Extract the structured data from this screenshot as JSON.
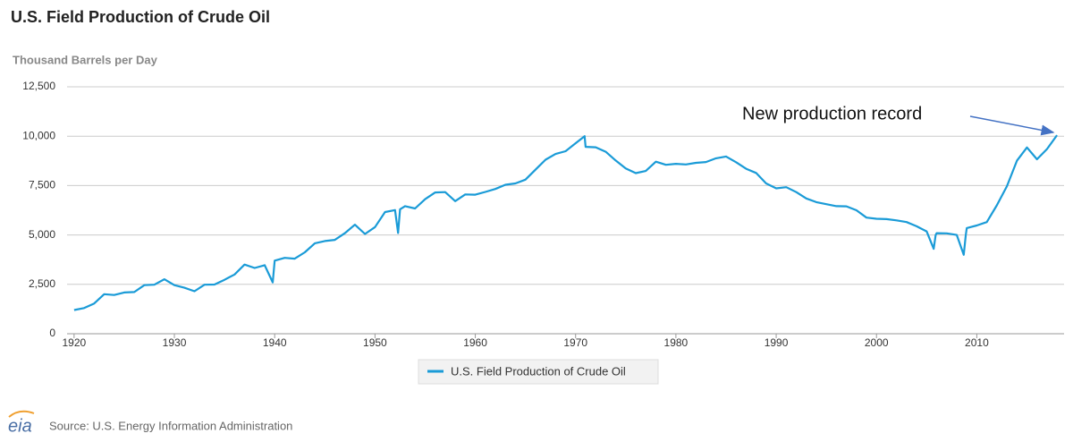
{
  "chart_data": {
    "type": "line",
    "title": "U.S. Field Production of Crude Oil",
    "y_axis_label": "Thousand Barrels per Day",
    "annotation": "New production record",
    "source": "Source: U.S. Energy Information Administration",
    "logo": "eia",
    "xlim": [
      1919.3,
      2018.7
    ],
    "xticks": [
      1920,
      1930,
      1940,
      1950,
      1960,
      1970,
      1980,
      1990,
      2000,
      2010
    ],
    "ylim": [
      0,
      12500
    ],
    "yticks": [
      0,
      {
        "value": 2500,
        "label": "2,500"
      },
      {
        "value": 5000,
        "label": "5,000"
      },
      {
        "value": 7500,
        "label": "7,500"
      },
      {
        "value": 10000,
        "label": "10,000"
      },
      {
        "value": 12500,
        "label": "12,500"
      }
    ],
    "grid": true,
    "x": [
      1920,
      1921,
      1922,
      1923,
      1924,
      1925,
      1926,
      1927,
      1928,
      1929,
      1930,
      1931,
      1932,
      1933,
      1934,
      1935,
      1936,
      1937,
      1938,
      1939,
      1939.8,
      1940,
      1941,
      1942,
      1943,
      1944,
      1945,
      1946,
      1947,
      1948,
      1949,
      1950,
      1951,
      1952,
      1952.3,
      1952.5,
      1953,
      1954,
      1955,
      1956,
      1957,
      1958,
      1959,
      1960,
      1961,
      1962,
      1963,
      1964,
      1965,
      1966,
      1967,
      1968,
      1969,
      1970,
      1970.9,
      1971,
      1972,
      1973,
      1974,
      1975,
      1976,
      1977,
      1978,
      1979,
      1980,
      1981,
      1982,
      1983,
      1984,
      1985,
      1986,
      1987,
      1988,
      1989,
      1990,
      1991,
      1992,
      1993,
      1994,
      1995,
      1996,
      1997,
      1998,
      1999,
      2000,
      2001,
      2002,
      2003,
      2004,
      2005,
      2005.7,
      2005.9,
      2006,
      2007,
      2008,
      2008.7,
      2008.9,
      2009,
      2010,
      2011,
      2012,
      2013,
      2014,
      2015,
      2016,
      2017,
      2018
    ],
    "series": [
      {
        "name": "U.S. Field Production of Crude Oil",
        "color": "#1a9bd7",
        "values": [
          1200,
          1300,
          1530,
          2000,
          1960,
          2090,
          2110,
          2460,
          2480,
          2760,
          2460,
          2330,
          2150,
          2480,
          2490,
          2730,
          3000,
          3500,
          3330,
          3470,
          2600,
          3700,
          3840,
          3800,
          4120,
          4580,
          4690,
          4750,
          5090,
          5520,
          5050,
          5400,
          6160,
          6260,
          5100,
          6300,
          6460,
          6340,
          6810,
          7150,
          7170,
          6710,
          7050,
          7040,
          7180,
          7330,
          7540,
          7610,
          7800,
          8300,
          8810,
          9100,
          9240,
          9640,
          10000,
          9460,
          9440,
          9210,
          8770,
          8370,
          8130,
          8240,
          8710,
          8550,
          8600,
          8570,
          8650,
          8690,
          8880,
          8970,
          8680,
          8350,
          8140,
          7610,
          7360,
          7420,
          7170,
          6850,
          6660,
          6560,
          6460,
          6450,
          6250,
          5880,
          5820,
          5800,
          5740,
          5650,
          5440,
          5180,
          4300,
          5000,
          5090,
          5080,
          5000,
          4000,
          5000,
          5350,
          5480,
          5650,
          6500,
          7470,
          8760,
          9430,
          8830,
          9350,
          10050
        ]
      }
    ],
    "legend": "bottom"
  }
}
